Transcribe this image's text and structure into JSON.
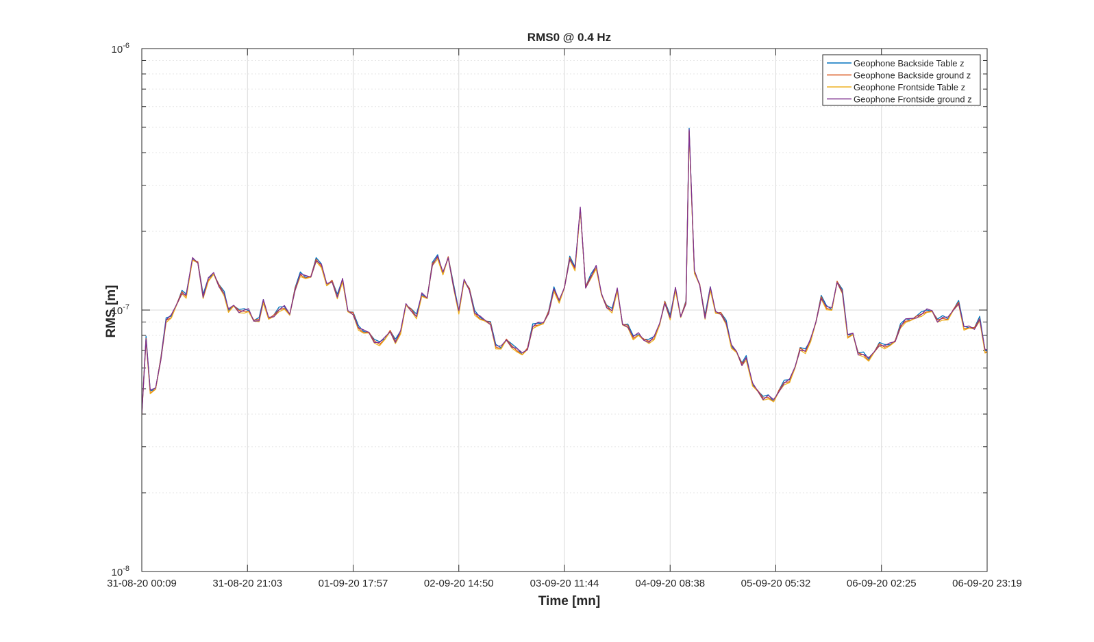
{
  "chart_data": {
    "type": "line",
    "title": "RMS0 @ 0.4 Hz",
    "xlabel": "Time [mn]",
    "ylabel": "RMS [m]",
    "yscale": "log",
    "ylim": [
      1e-08,
      1e-06
    ],
    "xlim": [
      0,
      8
    ],
    "grid": true,
    "legend_position": "top-right",
    "x_tick_labels": [
      "31-08-20 00:09",
      "31-08-20 21:03",
      "01-09-20 17:57",
      "02-09-20 14:50",
      "03-09-20 11:44",
      "04-09-20 08:38",
      "05-09-20 05:32",
      "06-09-20 02:25",
      "06-09-20 23:19"
    ],
    "y_tick_labels": [
      {
        "value": 1e-08,
        "base": "10",
        "exp": "-8"
      },
      {
        "value": 1e-07,
        "base": "10",
        "exp": "-7"
      },
      {
        "value": 1e-06,
        "base": "10",
        "exp": "-6"
      }
    ],
    "base_series_x_units": "tick intervals of 20 h 54 min",
    "base_values_e7": [
      [
        0.0,
        0.4
      ],
      [
        0.04,
        0.78
      ],
      [
        0.08,
        0.49
      ],
      [
        0.13,
        0.5
      ],
      [
        0.18,
        0.65
      ],
      [
        0.23,
        0.92
      ],
      [
        0.28,
        0.95
      ],
      [
        0.33,
        1.05
      ],
      [
        0.38,
        1.17
      ],
      [
        0.42,
        1.14
      ],
      [
        0.48,
        1.57
      ],
      [
        0.53,
        1.52
      ],
      [
        0.58,
        1.13
      ],
      [
        0.63,
        1.32
      ],
      [
        0.68,
        1.38
      ],
      [
        0.73,
        1.24
      ],
      [
        0.78,
        1.16
      ],
      [
        0.82,
        1.0
      ],
      [
        0.87,
        1.04
      ],
      [
        0.92,
        0.99
      ],
      [
        0.97,
        1.0
      ],
      [
        1.01,
        1.0
      ],
      [
        1.06,
        0.91
      ],
      [
        1.11,
        0.92
      ],
      [
        1.15,
        1.09
      ],
      [
        1.2,
        0.93
      ],
      [
        1.25,
        0.95
      ],
      [
        1.3,
        1.01
      ],
      [
        1.35,
        1.03
      ],
      [
        1.4,
        0.96
      ],
      [
        1.45,
        1.2
      ],
      [
        1.5,
        1.38
      ],
      [
        1.55,
        1.34
      ],
      [
        1.6,
        1.34
      ],
      [
        1.65,
        1.56
      ],
      [
        1.7,
        1.49
      ],
      [
        1.75,
        1.25
      ],
      [
        1.8,
        1.29
      ],
      [
        1.85,
        1.13
      ],
      [
        1.9,
        1.31
      ],
      [
        1.95,
        0.99
      ],
      [
        2.0,
        0.97
      ],
      [
        2.05,
        0.86
      ],
      [
        2.1,
        0.83
      ],
      [
        2.15,
        0.82
      ],
      [
        2.2,
        0.76
      ],
      [
        2.25,
        0.75
      ],
      [
        2.3,
        0.78
      ],
      [
        2.35,
        0.83
      ],
      [
        2.4,
        0.76
      ],
      [
        2.45,
        0.83
      ],
      [
        2.5,
        1.05
      ],
      [
        2.55,
        1.0
      ],
      [
        2.6,
        0.95
      ],
      [
        2.65,
        1.15
      ],
      [
        2.7,
        1.11
      ],
      [
        2.75,
        1.5
      ],
      [
        2.8,
        1.61
      ],
      [
        2.85,
        1.38
      ],
      [
        2.9,
        1.59
      ],
      [
        2.95,
        1.24
      ],
      [
        3.0,
        0.99
      ],
      [
        3.05,
        1.3
      ],
      [
        3.1,
        1.2
      ],
      [
        3.15,
        0.98
      ],
      [
        3.2,
        0.94
      ],
      [
        3.25,
        0.91
      ],
      [
        3.3,
        0.89
      ],
      [
        3.35,
        0.73
      ],
      [
        3.4,
        0.72
      ],
      [
        3.45,
        0.77
      ],
      [
        3.5,
        0.73
      ],
      [
        3.55,
        0.71
      ],
      [
        3.6,
        0.68
      ],
      [
        3.65,
        0.71
      ],
      [
        3.7,
        0.87
      ],
      [
        3.75,
        0.89
      ],
      [
        3.8,
        0.89
      ],
      [
        3.85,
        0.98
      ],
      [
        3.9,
        1.21
      ],
      [
        3.95,
        1.08
      ],
      [
        4.0,
        1.22
      ],
      [
        4.05,
        1.58
      ],
      [
        4.1,
        1.45
      ],
      [
        4.15,
        2.45
      ],
      [
        4.2,
        1.22
      ],
      [
        4.25,
        1.35
      ],
      [
        4.3,
        1.47
      ],
      [
        4.35,
        1.15
      ],
      [
        4.4,
        1.03
      ],
      [
        4.45,
        1.0
      ],
      [
        4.5,
        1.2
      ],
      [
        4.55,
        0.88
      ],
      [
        4.6,
        0.87
      ],
      [
        4.65,
        0.79
      ],
      [
        4.7,
        0.81
      ],
      [
        4.75,
        0.77
      ],
      [
        4.8,
        0.76
      ],
      [
        4.85,
        0.79
      ],
      [
        4.9,
        0.88
      ],
      [
        4.95,
        1.07
      ],
      [
        5.0,
        0.94
      ],
      [
        5.05,
        1.21
      ],
      [
        5.1,
        0.94
      ],
      [
        5.15,
        1.07
      ],
      [
        5.18,
        4.9
      ],
      [
        5.23,
        1.4
      ],
      [
        5.28,
        1.25
      ],
      [
        5.33,
        0.94
      ],
      [
        5.38,
        1.22
      ],
      [
        5.43,
        0.98
      ],
      [
        5.48,
        0.97
      ],
      [
        5.53,
        0.9
      ],
      [
        5.58,
        0.73
      ],
      [
        5.63,
        0.69
      ],
      [
        5.68,
        0.62
      ],
      [
        5.72,
        0.66
      ],
      [
        5.78,
        0.52
      ],
      [
        5.83,
        0.49
      ],
      [
        5.88,
        0.46
      ],
      [
        5.93,
        0.47
      ],
      [
        5.98,
        0.45
      ],
      [
        6.03,
        0.49
      ],
      [
        6.08,
        0.53
      ],
      [
        6.13,
        0.54
      ],
      [
        6.18,
        0.6
      ],
      [
        6.23,
        0.71
      ],
      [
        6.28,
        0.7
      ],
      [
        6.33,
        0.77
      ],
      [
        6.38,
        0.9
      ],
      [
        6.43,
        1.12
      ],
      [
        6.48,
        1.03
      ],
      [
        6.53,
        1.01
      ],
      [
        6.58,
        1.28
      ],
      [
        6.63,
        1.18
      ],
      [
        6.68,
        0.8
      ],
      [
        6.73,
        0.81
      ],
      [
        6.78,
        0.68
      ],
      [
        6.83,
        0.68
      ],
      [
        6.88,
        0.65
      ],
      [
        6.93,
        0.69
      ],
      [
        6.98,
        0.74
      ],
      [
        7.03,
        0.73
      ],
      [
        7.08,
        0.74
      ],
      [
        7.13,
        0.76
      ],
      [
        7.18,
        0.87
      ],
      [
        7.23,
        0.92
      ],
      [
        7.28,
        0.92
      ],
      [
        7.33,
        0.94
      ],
      [
        7.38,
        0.97
      ],
      [
        7.43,
        1.0
      ],
      [
        7.48,
        0.99
      ],
      [
        7.53,
        0.91
      ],
      [
        7.58,
        0.94
      ],
      [
        7.63,
        0.93
      ],
      [
        7.68,
        1.0
      ],
      [
        7.73,
        1.07
      ],
      [
        7.78,
        0.86
      ],
      [
        7.83,
        0.86
      ],
      [
        7.88,
        0.85
      ],
      [
        7.93,
        0.93
      ],
      [
        7.98,
        0.7
      ],
      [
        8.03,
        0.7
      ],
      [
        8.08,
        0.66
      ],
      [
        8.13,
        0.62
      ],
      [
        8.18,
        0.6
      ],
      [
        8.23,
        0.6
      ],
      [
        8.26,
        0.57
      ]
    ],
    "series": [
      {
        "name": "Geophone Backside Table z",
        "color": "#0072BD",
        "scale": 1.006,
        "phase": 0.0
      },
      {
        "name": "Geophone Backside ground z",
        "color": "#D95319",
        "scale": 0.996,
        "phase": 1.3
      },
      {
        "name": "Geophone Frontside Table z",
        "color": "#EDB120",
        "scale": 0.985,
        "phase": 2.1
      },
      {
        "name": "Geophone Frontside ground z",
        "color": "#7E2F8E",
        "scale": 1.0,
        "phase": 3.7
      }
    ]
  }
}
